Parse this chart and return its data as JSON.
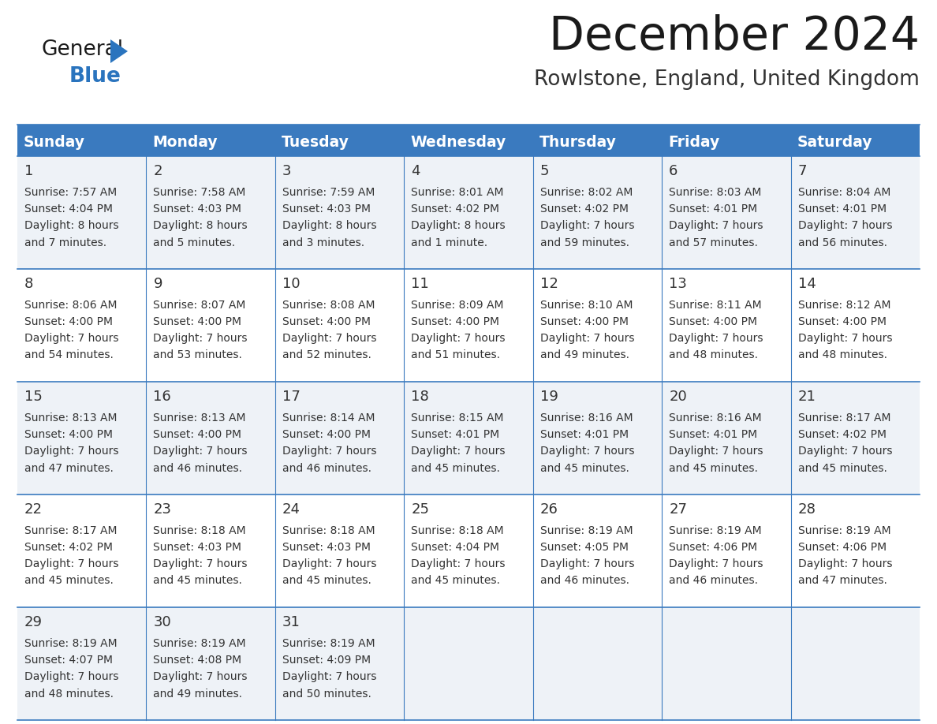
{
  "title": "December 2024",
  "subtitle": "Rowlstone, England, United Kingdom",
  "header_color": "#3a7abf",
  "header_text_color": "#ffffff",
  "cell_bg_color": "#eef2f7",
  "cell_bg_alt": "#ffffff",
  "day_headers": [
    "Sunday",
    "Monday",
    "Tuesday",
    "Wednesday",
    "Thursday",
    "Friday",
    "Saturday"
  ],
  "weeks": [
    [
      {
        "day": "1",
        "sunrise": "7:57 AM",
        "sunset": "4:04 PM",
        "daylight": "8 hours",
        "daylight2": "and 7 minutes."
      },
      {
        "day": "2",
        "sunrise": "7:58 AM",
        "sunset": "4:03 PM",
        "daylight": "8 hours",
        "daylight2": "and 5 minutes."
      },
      {
        "day": "3",
        "sunrise": "7:59 AM",
        "sunset": "4:03 PM",
        "daylight": "8 hours",
        "daylight2": "and 3 minutes."
      },
      {
        "day": "4",
        "sunrise": "8:01 AM",
        "sunset": "4:02 PM",
        "daylight": "8 hours",
        "daylight2": "and 1 minute."
      },
      {
        "day": "5",
        "sunrise": "8:02 AM",
        "sunset": "4:02 PM",
        "daylight": "7 hours",
        "daylight2": "and 59 minutes."
      },
      {
        "day": "6",
        "sunrise": "8:03 AM",
        "sunset": "4:01 PM",
        "daylight": "7 hours",
        "daylight2": "and 57 minutes."
      },
      {
        "day": "7",
        "sunrise": "8:04 AM",
        "sunset": "4:01 PM",
        "daylight": "7 hours",
        "daylight2": "and 56 minutes."
      }
    ],
    [
      {
        "day": "8",
        "sunrise": "8:06 AM",
        "sunset": "4:00 PM",
        "daylight": "7 hours",
        "daylight2": "and 54 minutes."
      },
      {
        "day": "9",
        "sunrise": "8:07 AM",
        "sunset": "4:00 PM",
        "daylight": "7 hours",
        "daylight2": "and 53 minutes."
      },
      {
        "day": "10",
        "sunrise": "8:08 AM",
        "sunset": "4:00 PM",
        "daylight": "7 hours",
        "daylight2": "and 52 minutes."
      },
      {
        "day": "11",
        "sunrise": "8:09 AM",
        "sunset": "4:00 PM",
        "daylight": "7 hours",
        "daylight2": "and 51 minutes."
      },
      {
        "day": "12",
        "sunrise": "8:10 AM",
        "sunset": "4:00 PM",
        "daylight": "7 hours",
        "daylight2": "and 49 minutes."
      },
      {
        "day": "13",
        "sunrise": "8:11 AM",
        "sunset": "4:00 PM",
        "daylight": "7 hours",
        "daylight2": "and 48 minutes."
      },
      {
        "day": "14",
        "sunrise": "8:12 AM",
        "sunset": "4:00 PM",
        "daylight": "7 hours",
        "daylight2": "and 48 minutes."
      }
    ],
    [
      {
        "day": "15",
        "sunrise": "8:13 AM",
        "sunset": "4:00 PM",
        "daylight": "7 hours",
        "daylight2": "and 47 minutes."
      },
      {
        "day": "16",
        "sunrise": "8:13 AM",
        "sunset": "4:00 PM",
        "daylight": "7 hours",
        "daylight2": "and 46 minutes."
      },
      {
        "day": "17",
        "sunrise": "8:14 AM",
        "sunset": "4:00 PM",
        "daylight": "7 hours",
        "daylight2": "and 46 minutes."
      },
      {
        "day": "18",
        "sunrise": "8:15 AM",
        "sunset": "4:01 PM",
        "daylight": "7 hours",
        "daylight2": "and 45 minutes."
      },
      {
        "day": "19",
        "sunrise": "8:16 AM",
        "sunset": "4:01 PM",
        "daylight": "7 hours",
        "daylight2": "and 45 minutes."
      },
      {
        "day": "20",
        "sunrise": "8:16 AM",
        "sunset": "4:01 PM",
        "daylight": "7 hours",
        "daylight2": "and 45 minutes."
      },
      {
        "day": "21",
        "sunrise": "8:17 AM",
        "sunset": "4:02 PM",
        "daylight": "7 hours",
        "daylight2": "and 45 minutes."
      }
    ],
    [
      {
        "day": "22",
        "sunrise": "8:17 AM",
        "sunset": "4:02 PM",
        "daylight": "7 hours",
        "daylight2": "and 45 minutes."
      },
      {
        "day": "23",
        "sunrise": "8:18 AM",
        "sunset": "4:03 PM",
        "daylight": "7 hours",
        "daylight2": "and 45 minutes."
      },
      {
        "day": "24",
        "sunrise": "8:18 AM",
        "sunset": "4:03 PM",
        "daylight": "7 hours",
        "daylight2": "and 45 minutes."
      },
      {
        "day": "25",
        "sunrise": "8:18 AM",
        "sunset": "4:04 PM",
        "daylight": "7 hours",
        "daylight2": "and 45 minutes."
      },
      {
        "day": "26",
        "sunrise": "8:19 AM",
        "sunset": "4:05 PM",
        "daylight": "7 hours",
        "daylight2": "and 46 minutes."
      },
      {
        "day": "27",
        "sunrise": "8:19 AM",
        "sunset": "4:06 PM",
        "daylight": "7 hours",
        "daylight2": "and 46 minutes."
      },
      {
        "day": "28",
        "sunrise": "8:19 AM",
        "sunset": "4:06 PM",
        "daylight": "7 hours",
        "daylight2": "and 47 minutes."
      }
    ],
    [
      {
        "day": "29",
        "sunrise": "8:19 AM",
        "sunset": "4:07 PM",
        "daylight": "7 hours",
        "daylight2": "and 48 minutes."
      },
      {
        "day": "30",
        "sunrise": "8:19 AM",
        "sunset": "4:08 PM",
        "daylight": "7 hours",
        "daylight2": "and 49 minutes."
      },
      {
        "day": "31",
        "sunrise": "8:19 AM",
        "sunset": "4:09 PM",
        "daylight": "7 hours",
        "daylight2": "and 50 minutes."
      },
      null,
      null,
      null,
      null
    ]
  ],
  "logo_color_general": "#1a1a1a",
  "logo_color_blue": "#2a74be",
  "line_color": "#3a7abf",
  "cell_text_color": "#333333",
  "title_color": "#1a1a1a",
  "subtitle_color": "#333333"
}
